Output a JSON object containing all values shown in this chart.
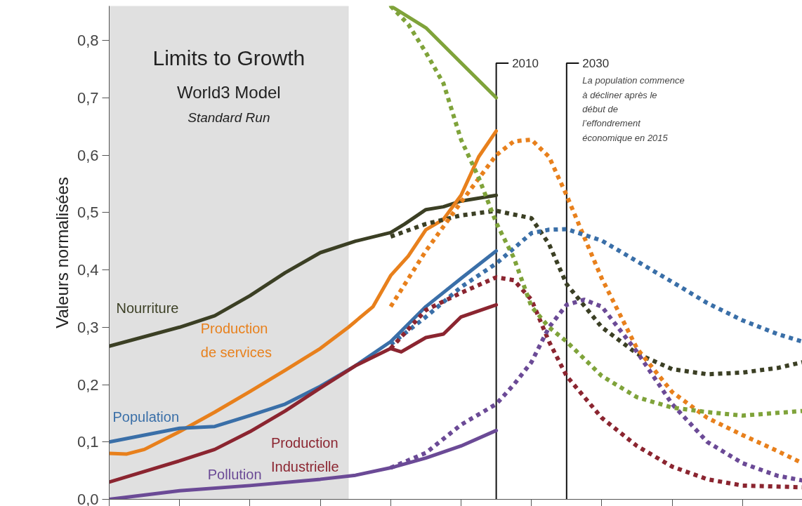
{
  "chart_data": {
    "type": "line",
    "title": "Limits to Growth",
    "subtitle": "World3 Model",
    "ylabel": "Valeurs normalisées",
    "annotations": [
      "Standard Run",
      "La population commence à décliner après le début de l’effondrement économique en 2015"
    ],
    "xlim": [
      1900,
      2097
    ],
    "ylim": [
      0,
      0.86
    ],
    "xticks": [
      {
        "value": 1900,
        "label": null
      },
      {
        "value": 1920,
        "label": null
      },
      {
        "value": 1940,
        "label": null
      },
      {
        "value": 1960,
        "label": null
      },
      {
        "value": 1980,
        "label": null
      },
      {
        "value": 2000,
        "label": null
      },
      {
        "value": 2020,
        "label": null
      },
      {
        "value": 2040,
        "label": null
      },
      {
        "value": 2060,
        "label": null
      },
      {
        "value": 2080,
        "label": null
      }
    ],
    "yticks": [
      {
        "value": 0,
        "label": "0,0"
      },
      {
        "value": 0.1,
        "label": "0,1"
      },
      {
        "value": 0.2,
        "label": "0,2"
      },
      {
        "value": 0.3,
        "label": "0,3"
      },
      {
        "value": 0.4,
        "label": "0,4"
      },
      {
        "value": 0.5,
        "label": "0,5"
      },
      {
        "value": 0.6,
        "label": "0,6"
      },
      {
        "value": 0.7,
        "label": "0,7"
      },
      {
        "value": 0.8,
        "label": "0,8"
      }
    ],
    "tick_labels": "y",
    "grid": false,
    "marker": "none",
    "bands": [
      {
        "axis": "x",
        "from": 1900,
        "to": 1968,
        "color": "#e0e0e0"
      }
    ],
    "ref_lines": [
      {
        "axis": "x",
        "value": 2010,
        "label": "2010",
        "color": "#111111"
      },
      {
        "axis": "x",
        "value": 2030,
        "label": "2030",
        "color": "#111111"
      }
    ],
    "series": [
      {
        "name": "Nourriture",
        "color": "#3b3f24",
        "line_style": "solid",
        "x": [
          1900,
          1920,
          1930,
          1940,
          1950,
          1960,
          1970,
          1980,
          1984,
          1990,
          1995,
          2000,
          2010
        ],
        "values": [
          0.267,
          0.3,
          0.32,
          0.355,
          0.395,
          0.43,
          0.45,
          0.465,
          0.48,
          0.505,
          0.51,
          0.52,
          0.53
        ]
      },
      {
        "name": "Production de services",
        "color": "#e8801c",
        "line_style": "solid",
        "x": [
          1900,
          1905,
          1910,
          1920,
          1930,
          1940,
          1950,
          1960,
          1968,
          1975,
          1980,
          1985,
          1990,
          1995,
          2000,
          2005,
          2010
        ],
        "values": [
          0.08,
          0.079,
          0.087,
          0.118,
          0.152,
          0.188,
          0.225,
          0.263,
          0.3,
          0.336,
          0.39,
          0.424,
          0.47,
          0.488,
          0.53,
          0.597,
          0.642
        ]
      },
      {
        "name": "Population",
        "color": "#3a6fa8",
        "line_style": "solid",
        "x": [
          1900,
          1920,
          1930,
          1940,
          1950,
          1960,
          1970,
          1980,
          1990,
          2000,
          2010
        ],
        "values": [
          0.1,
          0.124,
          0.127,
          0.146,
          0.166,
          0.197,
          0.233,
          0.275,
          0.336,
          0.385,
          0.433
        ]
      },
      {
        "name": "Production Industrielle",
        "color": "#8b2530",
        "line_style": "solid",
        "x": [
          1900,
          1920,
          1930,
          1940,
          1950,
          1960,
          1970,
          1980,
          1983,
          1990,
          1995,
          2000,
          2010
        ],
        "values": [
          0.03,
          0.067,
          0.087,
          0.118,
          0.154,
          0.194,
          0.233,
          0.263,
          0.257,
          0.282,
          0.288,
          0.318,
          0.339
        ]
      },
      {
        "name": "Pollution",
        "color": "#6b4a96",
        "line_style": "solid",
        "x": [
          1900,
          1920,
          1940,
          1960,
          1970,
          1980,
          1990,
          2000,
          2010
        ],
        "values": [
          0.0,
          0.015,
          0.024,
          0.035,
          0.042,
          0.055,
          0.072,
          0.093,
          0.12
        ]
      },
      {
        "color": "#7fa33a",
        "line_style": "solid",
        "x": [
          1980,
          1990,
          2000,
          2010
        ],
        "values": [
          0.86,
          0.822,
          0.761,
          0.7
        ]
      },
      {
        "color": "#3b3f24",
        "line_style": "dotted",
        "x": [
          1980,
          1990,
          2000,
          2010,
          2020,
          2025,
          2030,
          2040,
          2050,
          2060,
          2070,
          2080,
          2090,
          2097
        ],
        "values": [
          0.458,
          0.48,
          0.495,
          0.503,
          0.49,
          0.445,
          0.375,
          0.3,
          0.254,
          0.227,
          0.218,
          0.221,
          0.229,
          0.239
        ]
      },
      {
        "color": "#e8801c",
        "line_style": "dotted",
        "x": [
          1980,
          1990,
          2000,
          2010,
          2015,
          2020,
          2025,
          2030,
          2035,
          2040,
          2050,
          2060,
          2070,
          2080,
          2090,
          2097
        ],
        "values": [
          0.336,
          0.433,
          0.518,
          0.6,
          0.624,
          0.627,
          0.597,
          0.53,
          0.457,
          0.385,
          0.263,
          0.187,
          0.142,
          0.112,
          0.084,
          0.063
        ]
      },
      {
        "color": "#3a6fa8",
        "line_style": "dotted",
        "x": [
          1980,
          1990,
          2000,
          2010,
          2020,
          2025,
          2030,
          2040,
          2050,
          2060,
          2070,
          2080,
          2090,
          2097
        ],
        "values": [
          0.27,
          0.318,
          0.37,
          0.411,
          0.464,
          0.47,
          0.471,
          0.451,
          0.415,
          0.379,
          0.342,
          0.312,
          0.288,
          0.275
        ]
      },
      {
        "color": "#8b2530",
        "line_style": "dotted",
        "x": [
          1980,
          1990,
          2000,
          2010,
          2015,
          2020,
          2025,
          2030,
          2040,
          2050,
          2060,
          2070,
          2080,
          2097
        ],
        "values": [
          0.263,
          0.33,
          0.36,
          0.387,
          0.382,
          0.348,
          0.275,
          0.215,
          0.142,
          0.093,
          0.057,
          0.035,
          0.024,
          0.021
        ]
      },
      {
        "color": "#6b4a96",
        "line_style": "dotted",
        "x": [
          1980,
          1990,
          2000,
          2010,
          2015,
          2020,
          2025,
          2030,
          2035,
          2040,
          2050,
          2060,
          2070,
          2080,
          2090,
          2097
        ],
        "values": [
          0.055,
          0.081,
          0.13,
          0.166,
          0.2,
          0.239,
          0.3,
          0.339,
          0.348,
          0.336,
          0.257,
          0.166,
          0.1,
          0.063,
          0.041,
          0.033
        ]
      },
      {
        "color": "#7fa33a",
        "line_style": "dotted",
        "x": [
          1980,
          1985,
          1990,
          1995,
          2000,
          2005,
          2010,
          2015,
          2020,
          2025,
          2030,
          2040,
          2050,
          2060,
          2070,
          2080,
          2097
        ],
        "values": [
          0.86,
          0.828,
          0.779,
          0.725,
          0.627,
          0.561,
          0.482,
          0.421,
          0.336,
          0.3,
          0.275,
          0.215,
          0.178,
          0.16,
          0.152,
          0.146,
          0.154
        ]
      }
    ]
  }
}
